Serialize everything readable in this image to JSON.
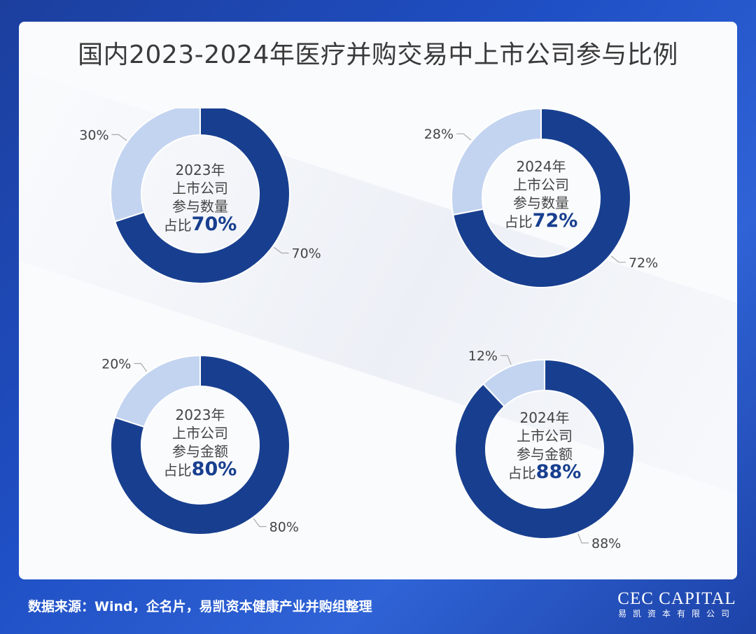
{
  "title": "国内2023-2024年医疗并购交易中上市公司参与比例",
  "colors": {
    "dark": "#183f8f",
    "light": "#c3d4f0",
    "background": "#2352c4"
  },
  "footer": {
    "source": "数据来源：Wind，企名片，易凯资本健康产业并购组整理"
  },
  "brand": {
    "en": "CEC CAPITAL",
    "cn": "易凯资本有限公司"
  },
  "chart_data": [
    {
      "type": "pie",
      "center_lines": [
        "2023年",
        "上市公司",
        "参与数量"
      ],
      "center_prefix": "占比",
      "center_pct": "70%",
      "slices": [
        {
          "label": "70%",
          "value": 70,
          "color": "#183f8f"
        },
        {
          "label": "30%",
          "value": 30,
          "color": "#c3d4f0"
        }
      ]
    },
    {
      "type": "pie",
      "center_lines": [
        "2024年",
        "上市公司",
        "参与数量"
      ],
      "center_prefix": "占比",
      "center_pct": "72%",
      "slices": [
        {
          "label": "72%",
          "value": 72,
          "color": "#183f8f"
        },
        {
          "label": "28%",
          "value": 28,
          "color": "#c3d4f0"
        }
      ]
    },
    {
      "type": "pie",
      "center_lines": [
        "2023年",
        "上市公司",
        "参与金额"
      ],
      "center_prefix": "占比",
      "center_pct": "80%",
      "slices": [
        {
          "label": "80%",
          "value": 80,
          "color": "#183f8f"
        },
        {
          "label": "20%",
          "value": 20,
          "color": "#c3d4f0"
        }
      ]
    },
    {
      "type": "pie",
      "center_lines": [
        "2024年",
        "上市公司",
        "参与金额"
      ],
      "center_prefix": "占比",
      "center_pct": "88%",
      "slices": [
        {
          "label": "88%",
          "value": 88,
          "color": "#183f8f"
        },
        {
          "label": "12%",
          "value": 12,
          "color": "#c3d4f0"
        }
      ]
    }
  ]
}
